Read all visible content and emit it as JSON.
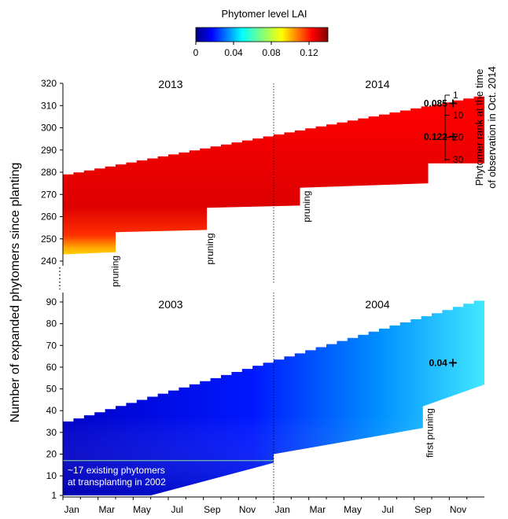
{
  "chart_data": {
    "type": "heatmap",
    "colorbar": {
      "title": "Phytomer level LAI",
      "ticks": [
        "0",
        "0.04",
        "0.08",
        "0.12"
      ],
      "colormap": "jet",
      "range": [
        0,
        0.14
      ]
    },
    "ylabel": "Number of expanded phytomers since planting",
    "right_ylabel": [
      "Phytomer rank at the time",
      "of observation in Oct. 2014"
    ],
    "right_ticks": [
      "1",
      "10",
      "20",
      "30"
    ],
    "x_months": [
      "Jan",
      "Mar",
      "May",
      "Jul",
      "Sep",
      "Nov",
      "Jan",
      "Mar",
      "May",
      "Jul",
      "Sep",
      "Nov"
    ],
    "panels": [
      {
        "id": "top",
        "years": [
          "2013",
          "2014"
        ],
        "ylim": [
          240,
          320
        ],
        "yticks": [
          "240",
          "250",
          "260",
          "270",
          "280",
          "290",
          "300",
          "310",
          "320"
        ],
        "top_edge": [
          [
            0,
            279
          ],
          [
            24,
            315
          ]
        ],
        "bottom_edge": [
          [
            0,
            243
          ],
          [
            3,
            244
          ],
          [
            3,
            253
          ],
          [
            8.2,
            254
          ],
          [
            8.2,
            264
          ],
          [
            13.5,
            265
          ],
          [
            13.5,
            273
          ],
          [
            20.8,
            275
          ],
          [
            20.8,
            284
          ],
          [
            24,
            284
          ]
        ],
        "lai_core": 0.13,
        "prunings": [
          {
            "label": "pruning",
            "month": 2.8
          },
          {
            "label": "pruning",
            "month": 8.2
          },
          {
            "label": "pruning",
            "month": 13.7
          }
        ],
        "markers": [
          {
            "label": "0.085",
            "month": 21.8,
            "phytomers": 311
          },
          {
            "label": "0.122",
            "month": 21.8,
            "phytomers": 296
          }
        ]
      },
      {
        "id": "bottom",
        "years": [
          "2003",
          "2004"
        ],
        "ylim": [
          1,
          90
        ],
        "yticks": [
          "1",
          "10",
          "20",
          "30",
          "40",
          "50",
          "60",
          "70",
          "80",
          "90"
        ],
        "top_edge": [
          [
            0,
            35
          ],
          [
            24,
            92
          ]
        ],
        "bottom_edge": [
          [
            0,
            1
          ],
          [
            5,
            1
          ],
          [
            12,
            16
          ],
          [
            12,
            20
          ],
          [
            20.5,
            32
          ],
          [
            20.5,
            42
          ],
          [
            24,
            52
          ]
        ],
        "lai_core": 0.04,
        "annotation": [
          "~17 existing phytomers",
          "at transplanting in 2002"
        ],
        "annotation_value": 17,
        "prunings": [
          {
            "label": "first pruning",
            "month": 20.7
          }
        ],
        "markers": [
          {
            "label": "0.04",
            "month": 21.8,
            "phytomers": 62
          }
        ]
      }
    ]
  }
}
